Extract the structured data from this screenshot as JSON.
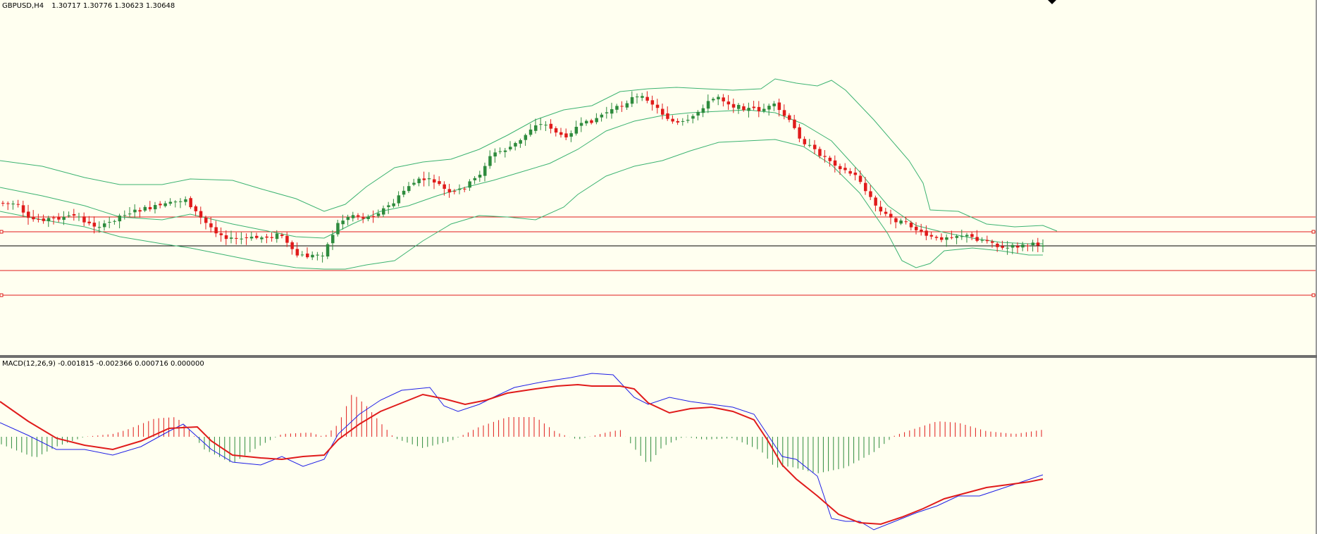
{
  "main_chart": {
    "symbol": "GBPUSD",
    "timeframe": "H4",
    "open": "1.30717",
    "high": "1.30776",
    "low": "1.30623",
    "close": "1.30648",
    "bollinger_color": "#3cb371",
    "bull_color": "#2e8b3d",
    "bear_color": "#e01b1b"
  },
  "macd_chart": {
    "label": "MACD(12,26,9) -0.001815 -0.002366 0.000716 0.000000",
    "main_color": "#1e1ee6",
    "signal_color": "#e01b1b"
  },
  "chart_data": {
    "type": "line",
    "title": "GBPUSD,H4  1.30717 1.30776 1.30623 1.30648",
    "xlabel": "",
    "ylabel": "",
    "grid": false,
    "legend": "none"
  }
}
